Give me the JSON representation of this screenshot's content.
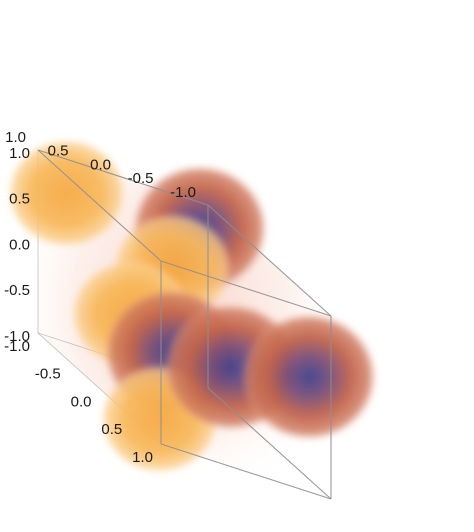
{
  "chart_data": {
    "type": "volume-density-3d",
    "title": "",
    "xlabel": "",
    "ylabel": "",
    "zlabel": "",
    "axes": {
      "x": {
        "range": [
          -1.0,
          1.0
        ],
        "ticks": [
          "-1.0",
          "-0.5",
          "0.0",
          "0.5",
          "1.0"
        ]
      },
      "y": {
        "range": [
          -1.0,
          1.0
        ],
        "ticks": [
          "-1.0",
          "-0.5",
          "0.0",
          "0.5",
          "1.0"
        ]
      },
      "z": {
        "range": [
          -1.0,
          1.0
        ],
        "ticks": [
          "-1.0",
          "-0.5",
          "0.0",
          "0.5",
          "1.0"
        ]
      }
    },
    "grid": false,
    "legend": "none",
    "colormap": {
      "low": "#F7B55A",
      "mid": "#C96A4E",
      "high": "#3E3F8C",
      "background_haze": "#FBE3DA"
    },
    "lobes": [
      {
        "x": -0.65,
        "y": -0.65,
        "z": 0.85,
        "tone": "high"
      },
      {
        "x": 0.7,
        "y": 0.65,
        "z": 0.85,
        "tone": "low"
      },
      {
        "x": -0.95,
        "y": 0.7,
        "z": 0.65,
        "tone": "low"
      },
      {
        "x": 0.85,
        "y": -0.85,
        "z": 0.2,
        "tone": "high"
      },
      {
        "x": 0.9,
        "y": 0.1,
        "z": 0.05,
        "tone": "high"
      },
      {
        "x": -0.05,
        "y": 0.6,
        "z": -0.1,
        "tone": "low"
      },
      {
        "x": -0.9,
        "y": -0.5,
        "z": -0.7,
        "tone": "high"
      },
      {
        "x": 0.7,
        "y": 0.8,
        "z": -0.85,
        "tone": "low"
      }
    ]
  }
}
